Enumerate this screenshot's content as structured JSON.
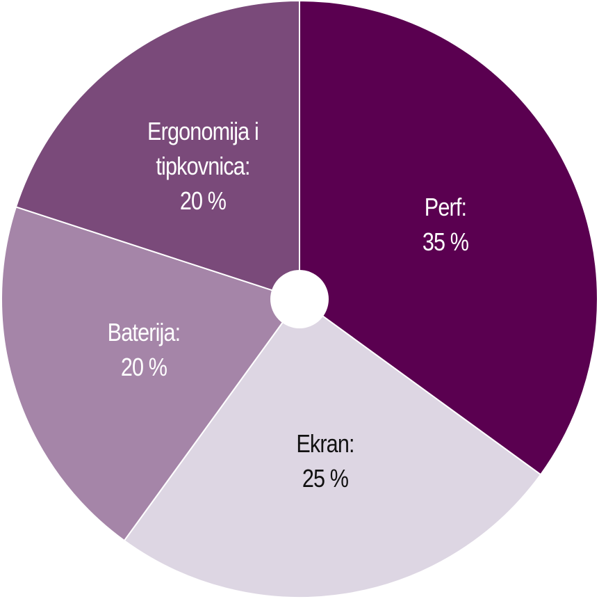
{
  "chart_data": {
    "type": "pie",
    "categories": [
      "Perf:",
      "Ekran:",
      "Baterija:",
      "Ergonomija i tipkovnica:"
    ],
    "values": [
      35,
      25,
      20,
      20
    ],
    "value_labels": [
      "35 %",
      "25 %",
      "20 %",
      "20 %"
    ],
    "colors": [
      "#5a0050",
      "#ddd6e3",
      "#a585a8",
      "#7a4a7a"
    ]
  }
}
